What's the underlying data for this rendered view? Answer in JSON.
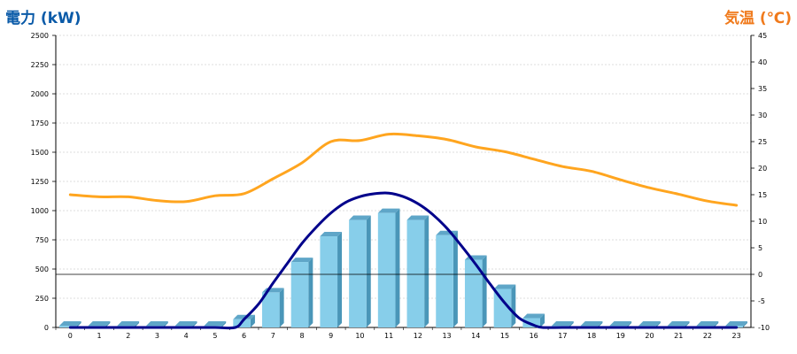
{
  "colors": {
    "left_axis_title": "#0a5aa8",
    "right_axis_title": "#f07a1c",
    "bar_front": "#87ceea",
    "bar_side": "#4a96b8",
    "bar_top": "#5fa6c8",
    "power_curve": "#00008b",
    "temperature_line": "#ffa51f",
    "grid": "#bdbdbd"
  },
  "chart_data": {
    "type": "bar",
    "title": "",
    "y_left_label": "電力 (kW)",
    "y_right_label": "気温 (℃)",
    "categories": [
      "0",
      "1",
      "2",
      "3",
      "4",
      "5",
      "6",
      "7",
      "8",
      "9",
      "10",
      "11",
      "12",
      "13",
      "14",
      "15",
      "16",
      "17",
      "18",
      "19",
      "20",
      "21",
      "22",
      "23"
    ],
    "y_left_ticks": [
      "0",
      "250",
      "500",
      "750",
      "1000",
      "1250",
      "1500",
      "1750",
      "2000",
      "2250",
      "2500"
    ],
    "y_right_ticks": [
      "-10",
      "-5",
      "0",
      "5",
      "10",
      "15",
      "20",
      "25",
      "30",
      "35",
      "40",
      "45"
    ],
    "y_left_range": [
      0,
      2500
    ],
    "y_right_range": [
      -10,
      45
    ],
    "grid": true,
    "zero_reference_line_temperature": 0,
    "series": [
      {
        "type": "bar",
        "axis": "left",
        "values": [
          0,
          0,
          0,
          0,
          0,
          0,
          70,
          300,
          560,
          780,
          920,
          980,
          920,
          790,
          580,
          330,
          80,
          0,
          0,
          0,
          0,
          0,
          0,
          0
        ]
      },
      {
        "type": "curve",
        "axis": "left",
        "x": [
          0,
          1,
          2,
          3,
          4,
          5,
          5.7,
          6,
          6.5,
          7,
          7.5,
          8,
          8.5,
          9,
          9.5,
          10,
          10.5,
          11,
          11.5,
          12,
          12.5,
          13,
          13.5,
          14,
          14.5,
          15,
          15.5,
          16,
          16.3,
          17,
          18,
          19,
          20,
          21,
          22,
          23
        ],
        "values": [
          0,
          0,
          0,
          0,
          0,
          0,
          0,
          70,
          200,
          380,
          550,
          720,
          860,
          980,
          1070,
          1120,
          1145,
          1150,
          1120,
          1060,
          970,
          850,
          700,
          540,
          370,
          210,
          80,
          20,
          0,
          0,
          0,
          0,
          0,
          0,
          0,
          0
        ]
      },
      {
        "type": "line",
        "axis": "right",
        "values": [
          15,
          14.6,
          14.6,
          13.9,
          13.7,
          14.8,
          15.2,
          18,
          21,
          25,
          25.2,
          26.4,
          26.1,
          25.4,
          24,
          23.1,
          21.7,
          20.3,
          19.4,
          17.8,
          16.3,
          15.1,
          13.8,
          13
        ]
      }
    ]
  }
}
